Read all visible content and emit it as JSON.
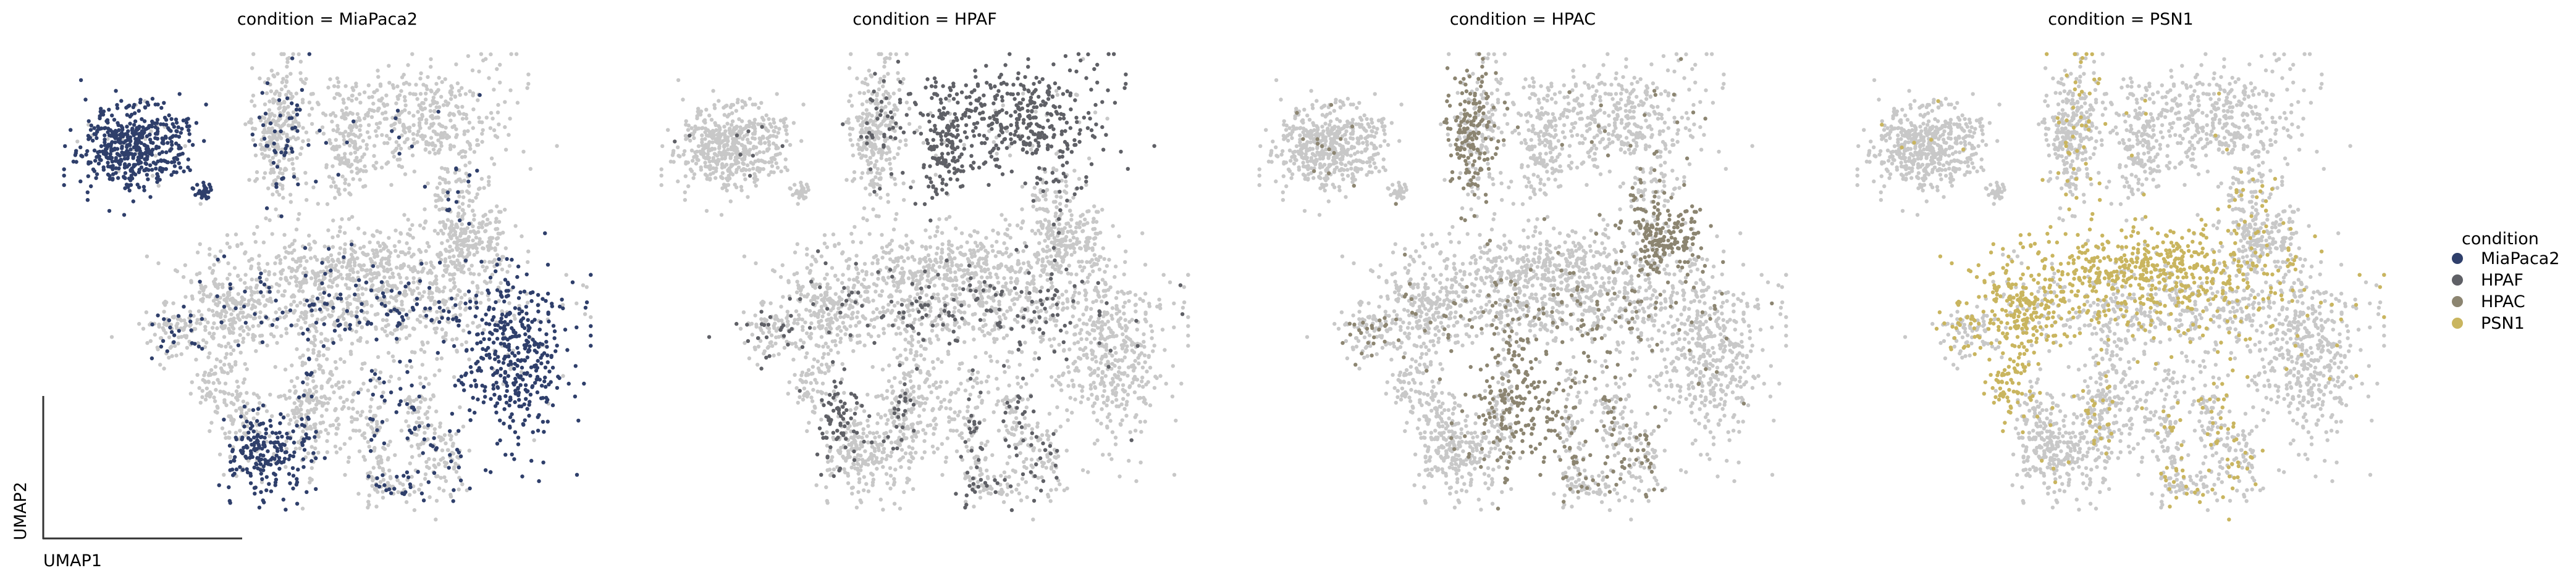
{
  "chart_data": {
    "type": "scatter",
    "embedding": "UMAP",
    "xlabel": "UMAP1",
    "ylabel": "UMAP2",
    "background_color": "#c8c8c8",
    "panels": [
      {
        "title": "condition = MiaPaca2",
        "highlight": "MiaPaca2"
      },
      {
        "title": "condition = HPAF",
        "highlight": "HPAF"
      },
      {
        "title": "condition = HPAC",
        "highlight": "HPAC"
      },
      {
        "title": "condition = PSN1",
        "highlight": "PSN1"
      }
    ],
    "legend": {
      "title": "condition",
      "placement": "right",
      "entries": [
        {
          "label": "MiaPaca2",
          "color": "#2f3f6b"
        },
        {
          "label": "HPAF",
          "color": "#5f6066"
        },
        {
          "label": "HPAC",
          "color": "#8c8571"
        },
        {
          "label": "PSN1",
          "color": "#c9b55f"
        }
      ]
    }
  }
}
